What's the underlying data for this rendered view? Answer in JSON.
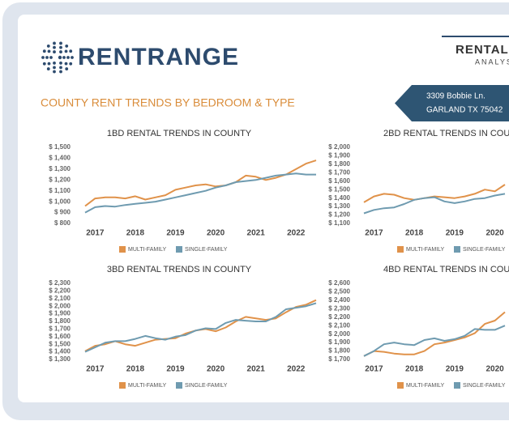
{
  "header": {
    "logo": "RENTRANGE",
    "report_title": "RENTAL",
    "report_subtitle": "ANALYS",
    "address_line1": "3309 Bobbie Ln.",
    "address_line2": "GARLAND TX 75042",
    "section_title": "COUNTY RENT TRENDS BY BEDROOM & TYPE"
  },
  "chart_data": [
    {
      "type": "line",
      "title": "1BD RENTAL TRENDS IN COUNTY",
      "x": [
        2016.75,
        2017,
        2017.25,
        2017.5,
        2017.75,
        2018,
        2018.25,
        2018.5,
        2018.75,
        2019,
        2019.25,
        2019.5,
        2019.75,
        2020,
        2020.25,
        2020.5,
        2020.75,
        2021,
        2021.25,
        2021.5,
        2021.75,
        2022,
        2022.25,
        2022.5
      ],
      "xlim": [
        2016.65,
        2022.5
      ],
      "xticks": [
        2017,
        2018,
        2019,
        2020,
        2021,
        2022
      ],
      "ylim": [
        800,
        1500
      ],
      "yticks": [
        {
          "value": 800,
          "label": "$ 800"
        },
        {
          "value": 900,
          "label": "$ 900"
        },
        {
          "value": 1000,
          "label": "$ 1,000"
        },
        {
          "value": 1100,
          "label": "$ 1,100"
        },
        {
          "value": 1200,
          "label": "$ 1,200"
        },
        {
          "value": 1300,
          "label": "$ 1,300"
        },
        {
          "value": 1400,
          "label": "$ 1,400"
        },
        {
          "value": 1500,
          "label": "$ 1,500"
        }
      ],
      "series": [
        {
          "name": "MULTI-FAMILY",
          "color": "#e0924a",
          "values": [
            960,
            1030,
            1040,
            1040,
            1030,
            1050,
            1020,
            1040,
            1060,
            1110,
            1130,
            1150,
            1160,
            1140,
            1150,
            1180,
            1240,
            1230,
            1200,
            1220,
            1250,
            1300,
            1350,
            1380
          ]
        },
        {
          "name": "SINGLE-FAMILY",
          "color": "#6f9bb0",
          "values": [
            900,
            950,
            960,
            955,
            970,
            980,
            990,
            1000,
            1020,
            1040,
            1060,
            1080,
            1100,
            1130,
            1150,
            1180,
            1190,
            1200,
            1220,
            1240,
            1250,
            1260,
            1250,
            1250
          ]
        }
      ]
    },
    {
      "type": "line",
      "title": "2BD RENTAL TRENDS IN COU",
      "x": [
        2016.75,
        2017,
        2017.25,
        2017.5,
        2017.75,
        2018,
        2018.25,
        2018.5,
        2018.75,
        2019,
        2019.25,
        2019.5,
        2019.75,
        2020,
        2020.25
      ],
      "xlim": [
        2016.65,
        2020.35
      ],
      "xticks": [
        2017,
        2018,
        2019,
        2020
      ],
      "ylim": [
        1100,
        2000
      ],
      "yticks": [
        {
          "value": 1100,
          "label": "$ 1,100"
        },
        {
          "value": 1200,
          "label": "$ 1,200"
        },
        {
          "value": 1300,
          "label": "$ 1,300"
        },
        {
          "value": 1400,
          "label": "$ 1,400"
        },
        {
          "value": 1500,
          "label": "$ 1,500"
        },
        {
          "value": 1600,
          "label": "$ 1,600"
        },
        {
          "value": 1700,
          "label": "$ 1,700"
        },
        {
          "value": 1800,
          "label": "$ 1,800"
        },
        {
          "value": 1900,
          "label": "$ 1,900"
        },
        {
          "value": 2000,
          "label": "$ 2,000"
        }
      ],
      "series": [
        {
          "name": "MULTI-FAMILY",
          "color": "#e0924a",
          "values": [
            1350,
            1420,
            1450,
            1440,
            1400,
            1380,
            1400,
            1420,
            1410,
            1400,
            1420,
            1450,
            1500,
            1480,
            1560
          ]
        },
        {
          "name": "SINGLE-FAMILY",
          "color": "#6f9bb0",
          "values": [
            1220,
            1260,
            1280,
            1290,
            1330,
            1380,
            1400,
            1410,
            1360,
            1340,
            1360,
            1390,
            1400,
            1430,
            1450
          ]
        }
      ]
    },
    {
      "type": "line",
      "title": "3BD RENTAL TRENDS IN COUNTY",
      "x": [
        2016.75,
        2017,
        2017.25,
        2017.5,
        2017.75,
        2018,
        2018.25,
        2018.5,
        2018.75,
        2019,
        2019.25,
        2019.5,
        2019.75,
        2020,
        2020.25,
        2020.5,
        2020.75,
        2021,
        2021.25,
        2021.5,
        2021.75,
        2022,
        2022.25,
        2022.5
      ],
      "xlim": [
        2016.65,
        2022.5
      ],
      "xticks": [
        2017,
        2018,
        2019,
        2020,
        2021,
        2022
      ],
      "ylim": [
        1300,
        2300
      ],
      "yticks": [
        {
          "value": 1300,
          "label": "$ 1,300"
        },
        {
          "value": 1400,
          "label": "$ 1,400"
        },
        {
          "value": 1500,
          "label": "$ 1,500"
        },
        {
          "value": 1600,
          "label": "$ 1,600"
        },
        {
          "value": 1700,
          "label": "$ 1,700"
        },
        {
          "value": 1800,
          "label": "$ 1,800"
        },
        {
          "value": 1900,
          "label": "$ 1,900"
        },
        {
          "value": 2000,
          "label": "$ 2,000"
        },
        {
          "value": 2100,
          "label": "$ 2,100"
        },
        {
          "value": 2200,
          "label": "$ 2,200"
        },
        {
          "value": 2300,
          "label": "$ 2,300"
        }
      ],
      "series": [
        {
          "name": "MULTI-FAMILY",
          "color": "#e0924a",
          "values": [
            1410,
            1480,
            1500,
            1540,
            1500,
            1480,
            1520,
            1560,
            1570,
            1580,
            1640,
            1680,
            1700,
            1670,
            1720,
            1800,
            1860,
            1840,
            1820,
            1840,
            1920,
            1990,
            2020,
            2080
          ]
        },
        {
          "name": "SINGLE-FAMILY",
          "color": "#6f9bb0",
          "values": [
            1400,
            1460,
            1520,
            1540,
            1540,
            1570,
            1610,
            1580,
            1560,
            1600,
            1620,
            1680,
            1710,
            1700,
            1780,
            1820,
            1810,
            1800,
            1800,
            1860,
            1960,
            1980,
            2000,
            2040
          ]
        }
      ]
    },
    {
      "type": "line",
      "title": "4BD RENTAL TRENDS IN COU",
      "x": [
        2016.75,
        2017,
        2017.25,
        2017.5,
        2017.75,
        2018,
        2018.25,
        2018.5,
        2018.75,
        2019,
        2019.25,
        2019.5,
        2019.75,
        2020,
        2020.25
      ],
      "xlim": [
        2016.65,
        2020.35
      ],
      "xticks": [
        2017,
        2018,
        2019,
        2020
      ],
      "ylim": [
        1700,
        2600
      ],
      "yticks": [
        {
          "value": 1700,
          "label": "$ 1,700"
        },
        {
          "value": 1800,
          "label": "$ 1,800"
        },
        {
          "value": 1900,
          "label": "$ 1,900"
        },
        {
          "value": 2000,
          "label": "$ 2,000"
        },
        {
          "value": 2100,
          "label": "$ 2,100"
        },
        {
          "value": 2200,
          "label": "$ 2,200"
        },
        {
          "value": 2300,
          "label": "$ 2,300"
        },
        {
          "value": 2400,
          "label": "$ 2,400"
        },
        {
          "value": 2500,
          "label": "$ 2,500"
        },
        {
          "value": 2600,
          "label": "$ 2,600"
        }
      ],
      "series": [
        {
          "name": "MULTI-FAMILY",
          "color": "#e0924a",
          "values": [
            1740,
            1800,
            1790,
            1770,
            1760,
            1760,
            1800,
            1880,
            1900,
            1930,
            1960,
            2010,
            2120,
            2160,
            2260
          ]
        },
        {
          "name": "SINGLE-FAMILY",
          "color": "#6f9bb0",
          "values": [
            1740,
            1800,
            1880,
            1900,
            1880,
            1870,
            1930,
            1950,
            1920,
            1940,
            1980,
            2060,
            2050,
            2050,
            2100
          ]
        }
      ]
    }
  ]
}
